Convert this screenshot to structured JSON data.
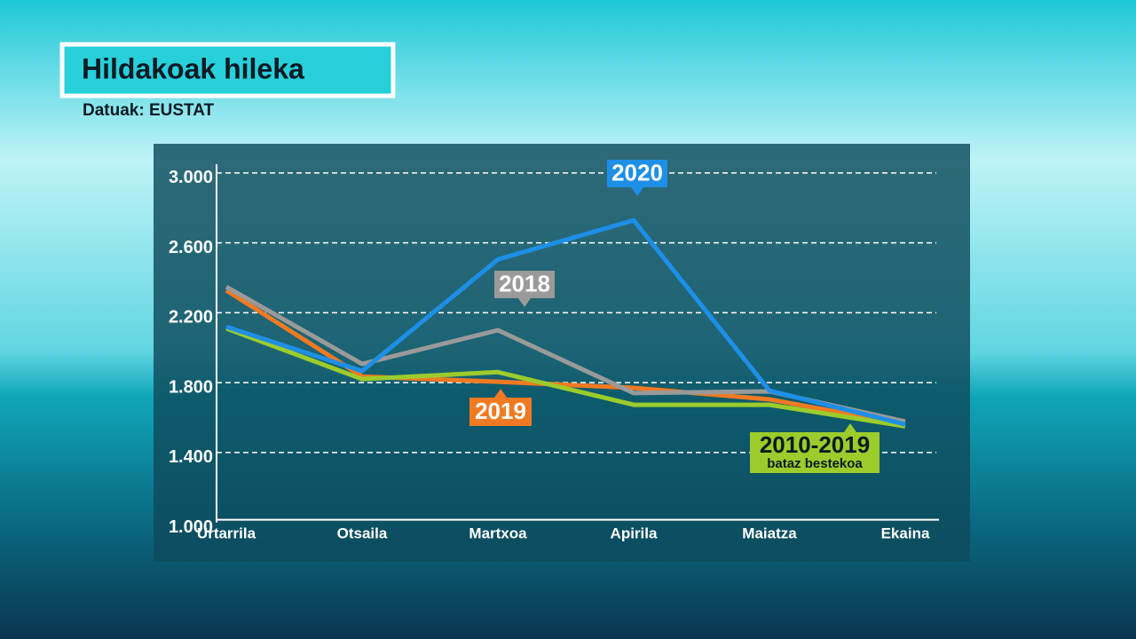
{
  "header": {
    "title": "Hildakoak hileka",
    "source": "Datuak: EUSTAT"
  },
  "chart_data": {
    "type": "line",
    "categories": [
      "Urtarrila",
      "Otsaila",
      "Martxoa",
      "Apirila",
      "Maiatza",
      "Ekaina"
    ],
    "series": [
      {
        "name": "2019",
        "color": "#f07a22",
        "values": [
          2328,
          1835,
          1805,
          1770,
          1704,
          1561
        ]
      },
      {
        "name": "2018",
        "color": "#9a9a9a",
        "values": [
          2348,
          1907,
          2100,
          1740,
          1750,
          1577
        ]
      },
      {
        "name": "2010-2019",
        "note": "bataz bestekoa",
        "color": "#9ccc2c",
        "values": [
          2110,
          1820,
          1860,
          1673,
          1673,
          1550
        ]
      },
      {
        "name": "2020",
        "color": "#1e8fe6",
        "values": [
          2120,
          1866,
          2505,
          2729,
          1754,
          1561
        ]
      }
    ],
    "ylim": [
      1000,
      3050
    ],
    "yticks": [
      {
        "value": 1000,
        "label": "1.000"
      },
      {
        "value": 1400,
        "label": "1.400"
      },
      {
        "value": 1800,
        "label": "1.800"
      },
      {
        "value": 2200,
        "label": "2.200"
      },
      {
        "value": 2600,
        "label": "2.600"
      },
      {
        "value": 3000,
        "label": "3.000"
      }
    ],
    "grid": true
  }
}
